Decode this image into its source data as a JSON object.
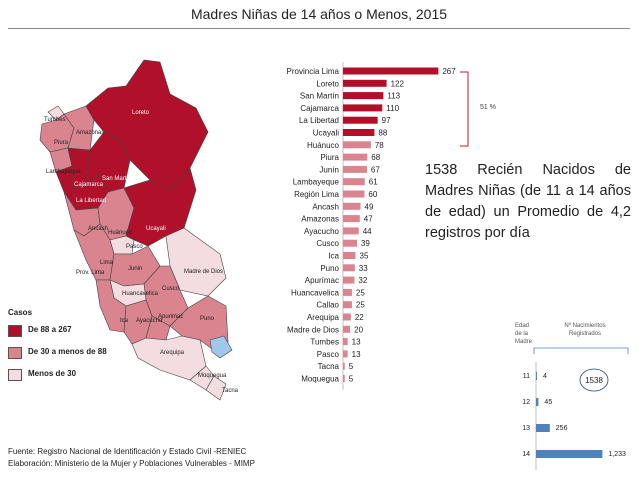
{
  "title": "Madres Niñas de 14 años o Menos, 2015",
  "summary_text": "1538 Recién Nacidos de Madres Niñas (de 11 a 14 años de edad) un Promedio de 4,2 registros por día",
  "bracket_note": "51 %",
  "legend": {
    "header": "Casos",
    "items": [
      {
        "label": "De 88 a 267",
        "color": "#b0102a"
      },
      {
        "label": "De 30  a menos de 88",
        "color": "#d9848f"
      },
      {
        "label": "Menos de 30",
        "color": "#f3dde0"
      }
    ]
  },
  "map_labels": {
    "tumbes": "Tumbes",
    "piura": "Piura",
    "amazonas": "Amazonas",
    "loreto": "Loreto",
    "lambayeque": "Lambayeque",
    "cajamarca": "Cajamarca",
    "san_martin": "San Martin",
    "la_libertad": "La Libertad",
    "ancash": "Ancash",
    "huanuco": "Huánuco",
    "ucayali": "Ucayali",
    "pasco": "Pasco",
    "lima": "Lima",
    "prov_lima": "Prov. Lima",
    "junin": "Junin",
    "madre_de_dios": "Madre de Dios",
    "cusco": "Cusco",
    "huancavelica": "Huancavelica",
    "ica": "Ica",
    "ayacucho": "Ayacucho",
    "apurimac": "Apurimac",
    "puno": "Puno",
    "arequipa": "Arequipa",
    "moquegua": "Moquegua",
    "tacna": "Tacna"
  },
  "chart_data": [
    {
      "type": "bar",
      "orientation": "horizontal",
      "title": "",
      "categories": [
        "Provincia Lima",
        "Loreto",
        "San Martín",
        "Cajamarca",
        "La Libertad",
        "Ucayali",
        "Huánuco",
        "Piura",
        "Junín",
        "Lambayeque",
        "Región Lima",
        "Ancash",
        "Amazonas",
        "Ayacucho",
        "Cusco",
        "Ica",
        "Puno",
        "Apurímac",
        "Huancavelica",
        "Callao",
        "Arequipa",
        "Madre de Dios",
        "Tumbes",
        "Pasco",
        "Tacna",
        "Moquegua"
      ],
      "values": [
        267,
        122,
        113,
        110,
        97,
        88,
        78,
        68,
        67,
        61,
        60,
        49,
        47,
        44,
        39,
        35,
        33,
        32,
        25,
        25,
        22,
        20,
        13,
        13,
        5,
        5
      ],
      "colors": {
        "high": "#b0102a",
        "low": "#d9848f"
      },
      "high_count": 6,
      "xlim": [
        0,
        280
      ]
    },
    {
      "type": "bar",
      "orientation": "horizontal",
      "title": "Nº Nacimientos Registrados",
      "ylabel": "Edad de la Madre",
      "categories": [
        "11",
        "12",
        "13",
        "14"
      ],
      "values": [
        4,
        45,
        256,
        1233
      ],
      "value_labels": [
        "4",
        "45",
        "256",
        "1,233"
      ],
      "total_label": "1538",
      "color": "#4f81bd",
      "xlim": [
        0,
        1300
      ]
    }
  ],
  "footer": {
    "source": "Fuente: Registro Nacional de Identificación y Estado  Civil  -RENIEC",
    "elaboration": "Elaboración: Ministerio de la Mujer y Poblaciones Vulnerables - MIMP"
  }
}
